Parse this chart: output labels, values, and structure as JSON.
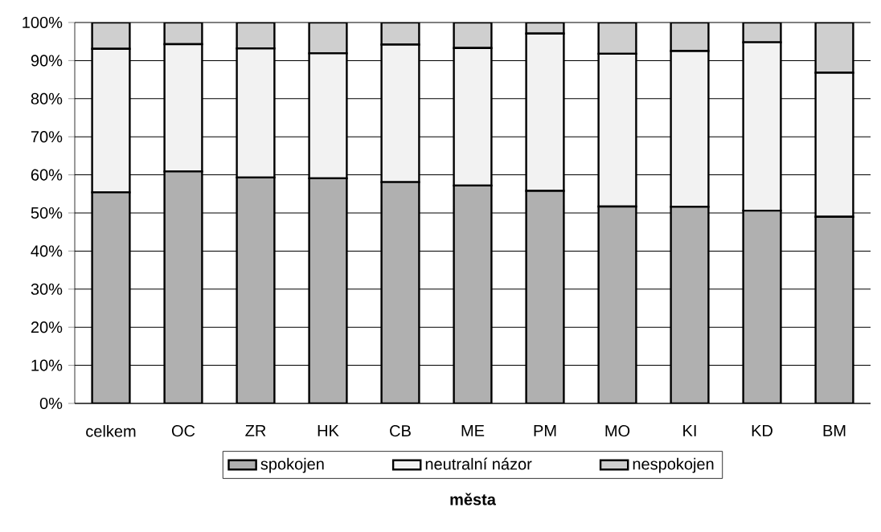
{
  "chart_data": {
    "type": "bar",
    "stacked": true,
    "xlabel": "města",
    "categories": [
      "celkem",
      "OC",
      "ZR",
      "HK",
      "CB",
      "ME",
      "PM",
      "MO",
      "KI",
      "KD",
      "BM"
    ],
    "series": [
      {
        "name": "spokojen",
        "color": "#b0b0b0",
        "values": [
          55.4,
          60.9,
          59.3,
          59.1,
          58.1,
          57.2,
          55.8,
          51.7,
          51.6,
          50.6,
          49.0
        ]
      },
      {
        "name": "neutralní názor",
        "color": "#f2f2f2",
        "values": [
          37.7,
          33.4,
          33.9,
          32.8,
          36.1,
          36.1,
          41.3,
          40.1,
          40.9,
          44.2,
          37.8
        ]
      },
      {
        "name": "nespokojen",
        "color": "#cfcfcf",
        "values": [
          6.9,
          5.7,
          6.8,
          8.1,
          5.8,
          6.7,
          2.9,
          8.2,
          7.5,
          5.2,
          13.2
        ]
      }
    ],
    "ylim": [
      0,
      100
    ],
    "yticks": [
      {
        "value": 0,
        "label": "0%"
      },
      {
        "value": 10,
        "label": "10%"
      },
      {
        "value": 20,
        "label": "20%"
      },
      {
        "value": 30,
        "label": "30%"
      },
      {
        "value": 40,
        "label": "40%"
      },
      {
        "value": 50,
        "label": "50%"
      },
      {
        "value": 60,
        "label": "60%"
      },
      {
        "value": 70,
        "label": "70%"
      },
      {
        "value": 80,
        "label": "80%"
      },
      {
        "value": 90,
        "label": "90%"
      },
      {
        "value": 100,
        "label": "100%"
      }
    ],
    "grid": "y",
    "legend": "bottom"
  }
}
